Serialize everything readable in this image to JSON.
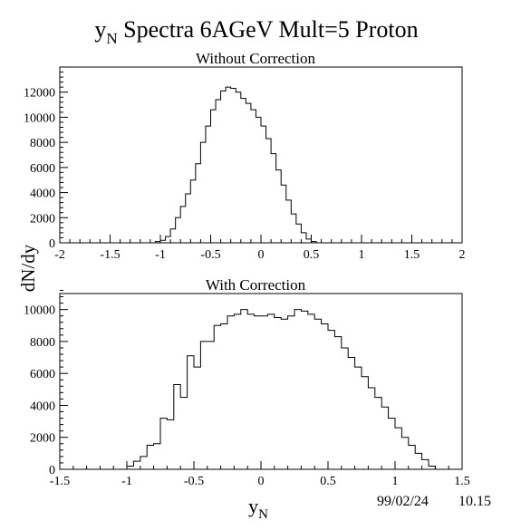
{
  "figure": {
    "title_main": "y",
    "title_sub": "N",
    "title_rest": " Spectra 6AGeV Mult=5 Proton",
    "ylabel": "dN/dy",
    "xlabel_main": "y",
    "xlabel_sub": "N",
    "date": "99/02/24",
    "time": "10.15"
  },
  "chart_data": [
    {
      "type": "histogram",
      "title": "Without Correction",
      "xlim": [
        -2,
        2
      ],
      "ylim": [
        0,
        14000
      ],
      "xticks": [
        -2,
        -1.5,
        -1,
        -0.5,
        0,
        0.5,
        1,
        1.5,
        2
      ],
      "xtick_labels": [
        "-2",
        "-1.5",
        "-1",
        "-0.5",
        "0",
        "0.5",
        "1",
        "1.5",
        "2"
      ],
      "yticks": [
        0,
        2000,
        4000,
        6000,
        8000,
        10000,
        12000
      ],
      "ytick_labels": [
        "0",
        "2000",
        "4000",
        "6000",
        "8000",
        "10000",
        "12000"
      ],
      "bin_edges_start": -1.1,
      "bin_width": 0.05,
      "values": [
        0,
        100,
        200,
        500,
        1100,
        2000,
        2900,
        3900,
        5000,
        6300,
        8000,
        9300,
        10600,
        11400,
        12100,
        12400,
        12300,
        12000,
        11500,
        11100,
        10600,
        10000,
        9300,
        8300,
        7100,
        5800,
        4600,
        3400,
        2300,
        1500,
        800,
        300,
        100,
        0,
        0
      ]
    },
    {
      "type": "histogram",
      "title": "With Correction",
      "xlim": [
        -1.5,
        1.5
      ],
      "ylim": [
        0,
        11000
      ],
      "xticks": [
        -1.5,
        -1,
        -0.5,
        0,
        0.5,
        1,
        1.5
      ],
      "xtick_labels": [
        "-1.5",
        "-1",
        "-0.5",
        "0",
        "0.5",
        "1",
        "1.5"
      ],
      "yticks": [
        0,
        2000,
        4000,
        6000,
        8000,
        10000
      ],
      "ytick_labels": [
        "0",
        "2000",
        "4000",
        "6000",
        "8000",
        "10000"
      ],
      "bin_edges_start": -1.0,
      "bin_width": 0.05,
      "values": [
        200,
        500,
        800,
        1500,
        1600,
        3200,
        3100,
        5300,
        4500,
        7100,
        6400,
        8000,
        8000,
        9000,
        9100,
        9600,
        9700,
        10000,
        9700,
        9600,
        9600,
        9700,
        9500,
        9400,
        9600,
        10000,
        9900,
        9700,
        9400,
        9100,
        8700,
        8300,
        7600,
        7000,
        6400,
        5800,
        5100,
        4500,
        3900,
        3200,
        2600,
        2000,
        1500,
        1000,
        600,
        200,
        0
      ]
    }
  ]
}
